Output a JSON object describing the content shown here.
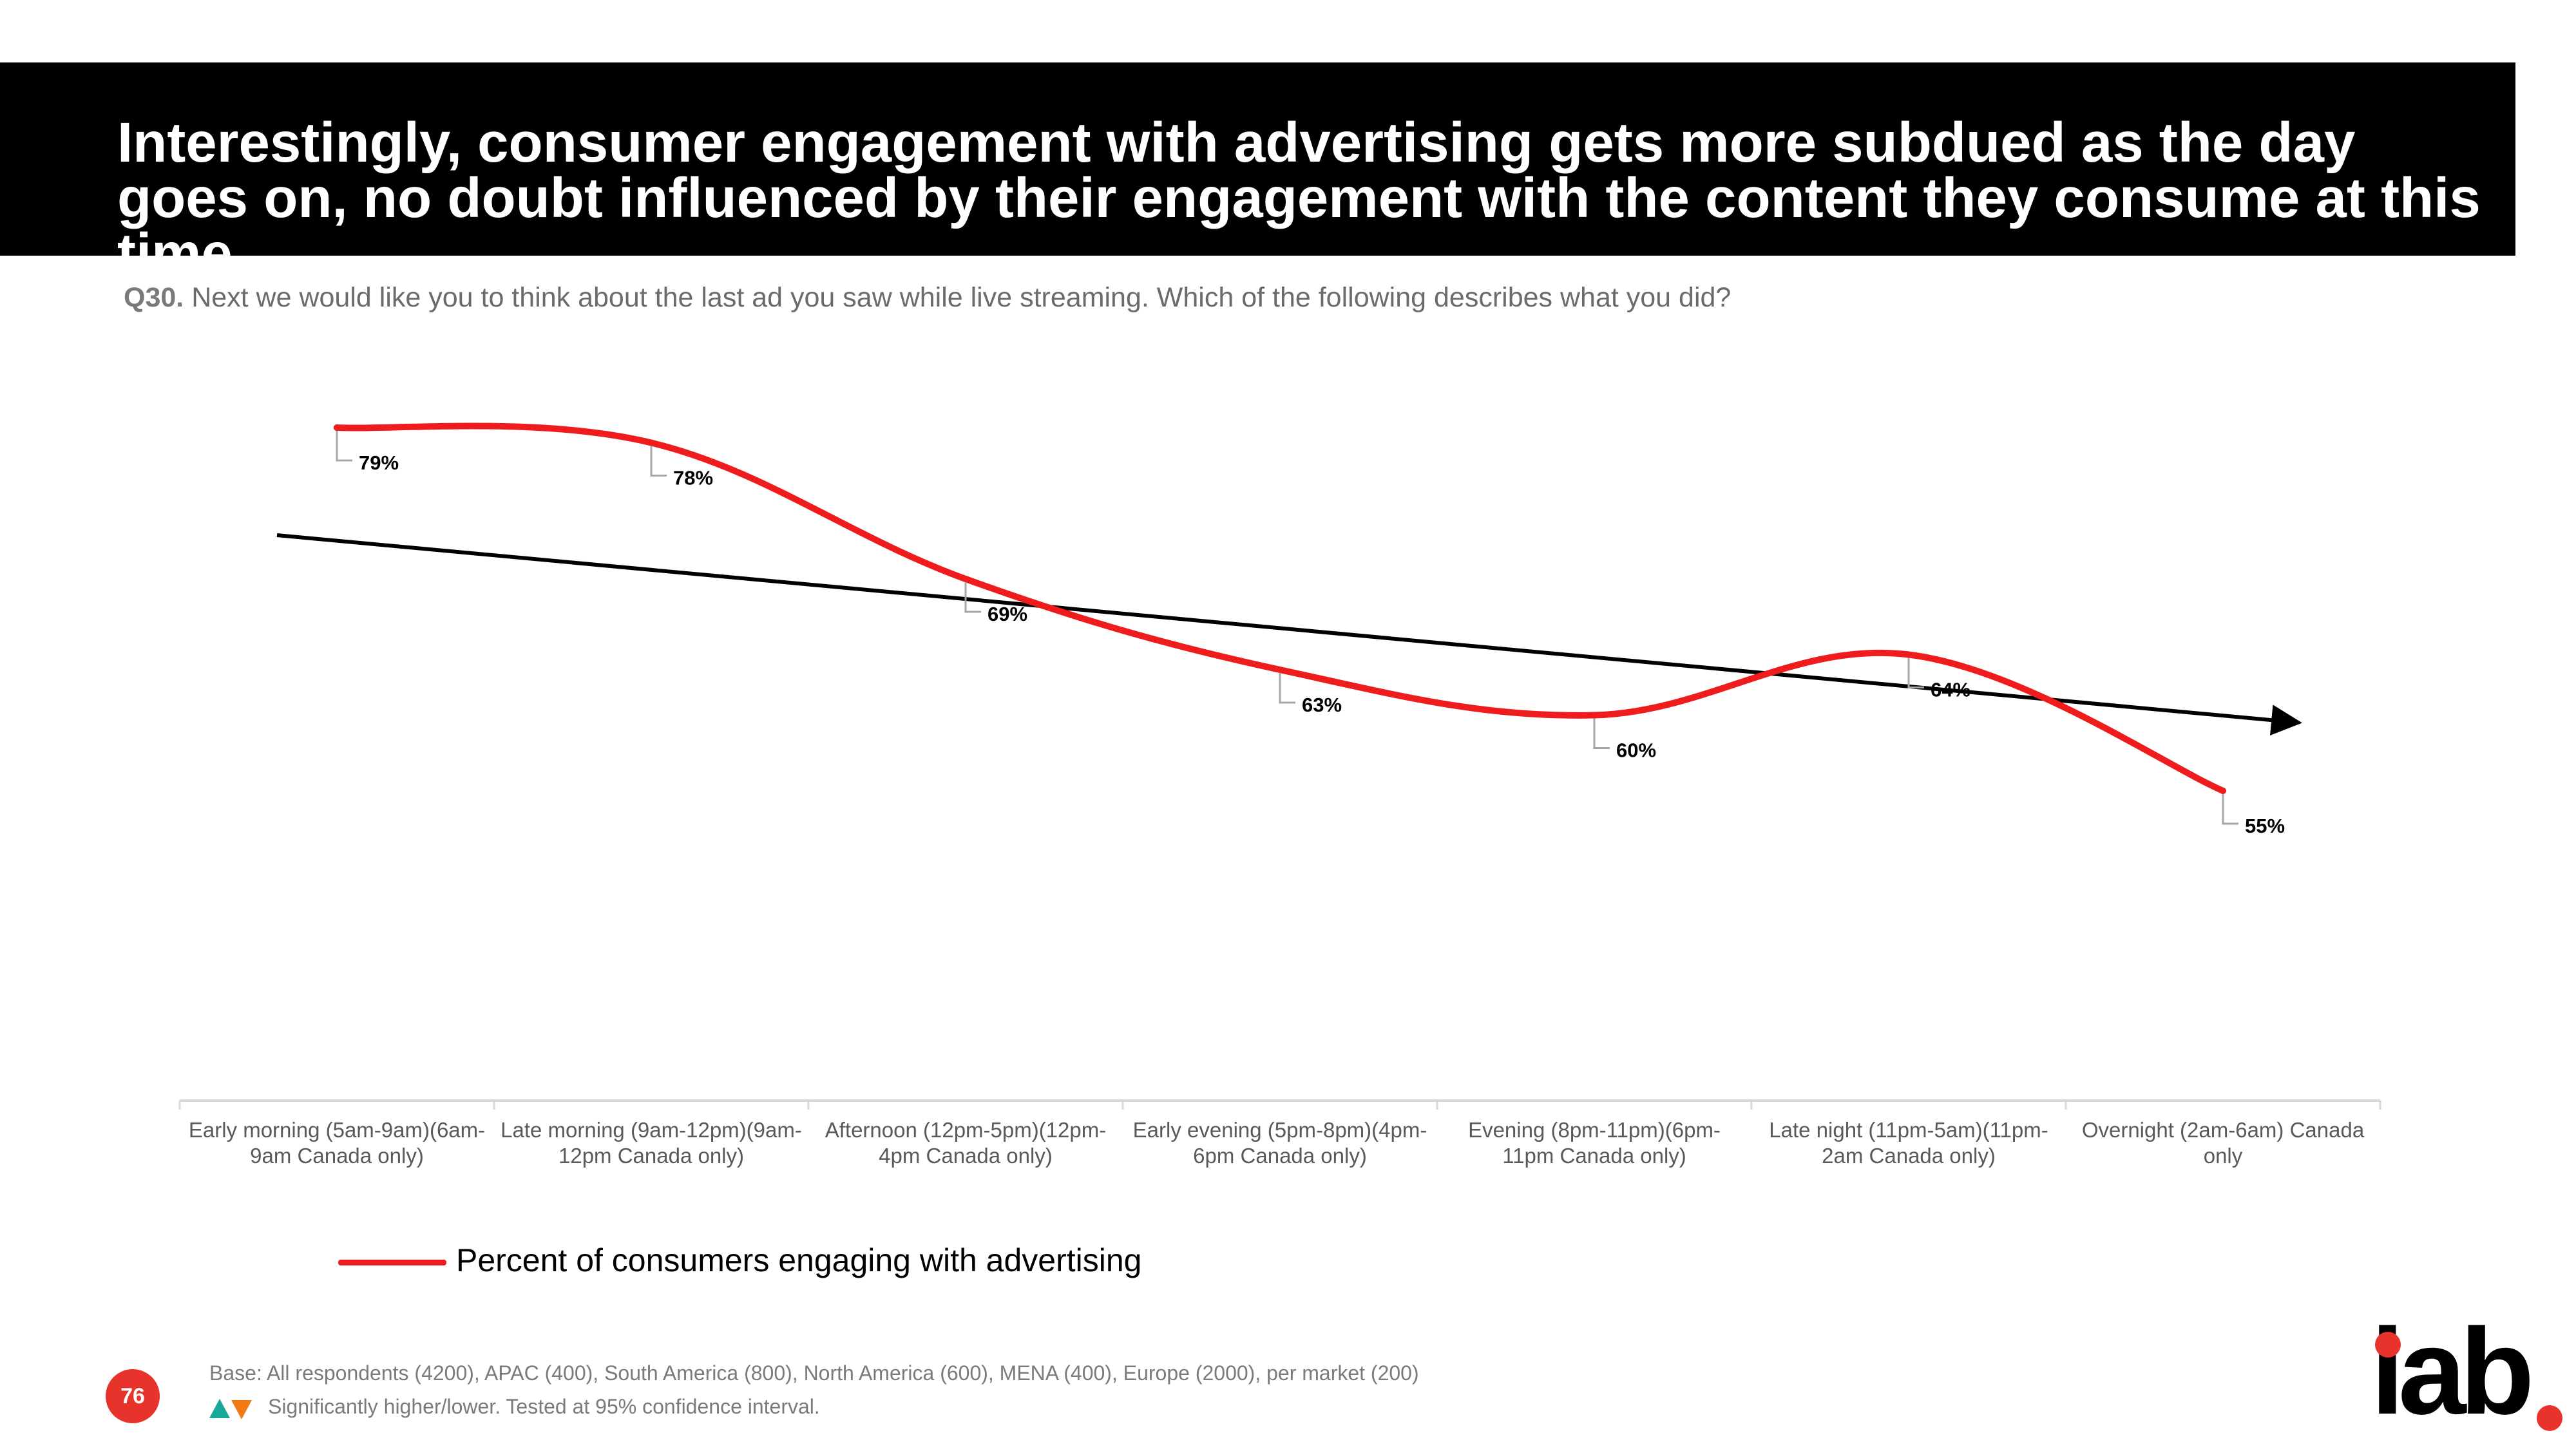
{
  "header": {
    "title": "Interestingly, consumer engagement with advertising gets more subdued as the day goes on, no doubt influenced by their engagement with the content they consume at this time"
  },
  "question": {
    "number": "Q30.",
    "text": "Next we would like you to think about the last ad you saw while live streaming. Which of the following describes what you did?"
  },
  "chart_data": {
    "type": "line",
    "title": "",
    "xlabel": "",
    "ylabel": "",
    "ylim": [
      0,
      100
    ],
    "grid": false,
    "legend_position": "bottom-left",
    "categories": [
      "Early morning (5am-9am)(6am-9am Canada only)",
      "Late morning (9am-12pm)(9am-12pm Canada only)",
      "Afternoon (12pm-5pm)(12pm-4pm Canada only)",
      "Early evening (5pm-8pm)(4pm-6pm Canada only)",
      "Evening (8pm-11pm)(6pm-11pm Canada only)",
      "Late night (11pm-5am)(11pm-2am Canada only)",
      "Overnight (2am-6am) Canada only"
    ],
    "category_lines": [
      [
        "Early morning (5am-9am)(6am-",
        "9am Canada only)"
      ],
      [
        "Late morning (9am-12pm)(9am-",
        "12pm Canada only)"
      ],
      [
        "Afternoon (12pm-5pm)(12pm-",
        "4pm Canada only)"
      ],
      [
        "Early evening (5pm-8pm)(4pm-",
        "6pm Canada only)"
      ],
      [
        "Evening (8pm-11pm)(6pm-",
        "11pm Canada only)"
      ],
      [
        "Late night (11pm-5am)(11pm-",
        "2am Canada only)"
      ],
      [
        "Overnight (2am-6am) Canada",
        "only"
      ]
    ],
    "series": [
      {
        "name": "Percent of consumers engaging with advertising",
        "color": "#ee1c1c",
        "values": [
          79,
          78,
          69,
          63,
          60,
          64,
          55
        ],
        "labels": [
          "79%",
          "78%",
          "69%",
          "63%",
          "60%",
          "64%",
          "55%"
        ]
      }
    ],
    "annotation": {
      "type": "trend-arrow",
      "color": "#000000",
      "direction": "downward"
    }
  },
  "legend": {
    "label": "Percent of consumers engaging with advertising",
    "color": "#ee1c1c"
  },
  "footer": {
    "page_number": "76",
    "base": "Base: All respondents (4200), APAC (400), South America (800), North America (600), MENA (400), Europe (2000), per market (200)",
    "significance": "Significantly higher/lower. Tested at 95% confidence interval.",
    "sig_up_color": "#17a89a",
    "sig_down_color": "#f07b16"
  },
  "brand": {
    "logo_text": "iab",
    "accent": "#e8322c"
  }
}
